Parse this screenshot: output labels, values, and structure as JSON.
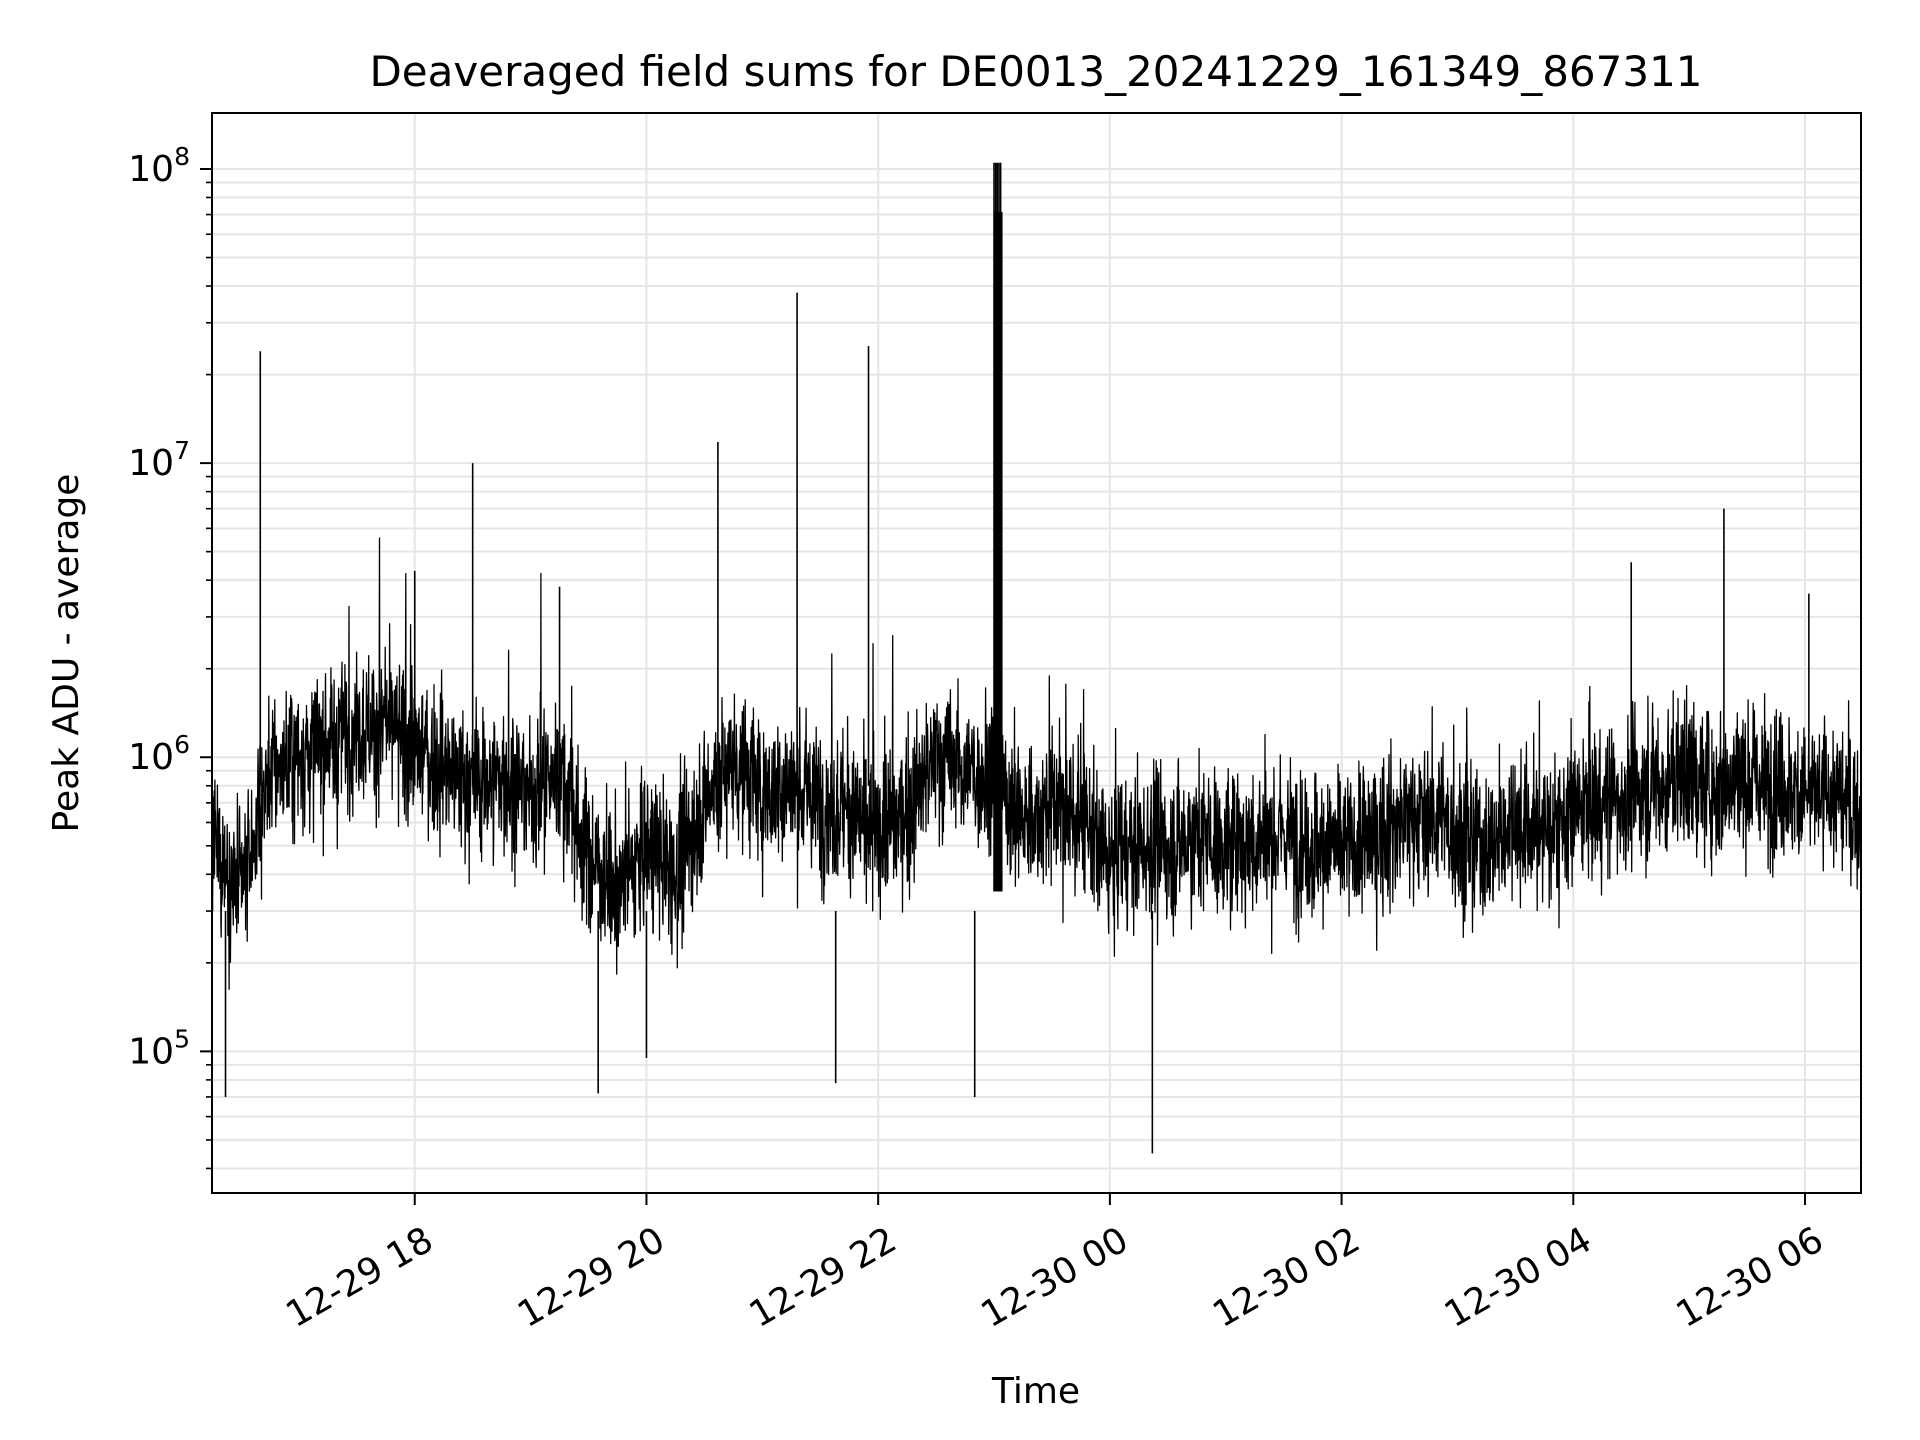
{
  "chart_data": {
    "type": "line",
    "title": "Deaveraged field sums for DE0013_20241229_161349_867311",
    "xlabel": "Time",
    "ylabel": "Peak ADU - average",
    "yscale": "log",
    "grid": true,
    "line_color": "#000000",
    "grid_color": "#e6e6e6",
    "xlim": [
      "2024-12-29 16:15",
      "2024-12-30 06:29"
    ],
    "ylim": [
      33000,
      155000000
    ],
    "x_ticks": [
      {
        "value": "2024-12-29 18:00",
        "label": "12-29 18"
      },
      {
        "value": "2024-12-29 20:00",
        "label": "12-29 20"
      },
      {
        "value": "2024-12-29 22:00",
        "label": "12-29 22"
      },
      {
        "value": "2024-12-30 00:00",
        "label": "12-30 00"
      },
      {
        "value": "2024-12-30 02:00",
        "label": "12-30 02"
      },
      {
        "value": "2024-12-30 04:00",
        "label": "12-30 04"
      },
      {
        "value": "2024-12-30 06:00",
        "label": "12-30 06"
      }
    ],
    "y_ticks": [
      {
        "value": 100000,
        "base": "10",
        "exp": "5"
      },
      {
        "value": 1000000,
        "base": "10",
        "exp": "6"
      },
      {
        "value": 10000000,
        "base": "10",
        "exp": "7"
      },
      {
        "value": 100000000,
        "base": "10",
        "exp": "8"
      }
    ],
    "series": [
      {
        "x": [
          "2024-12-29 16:15",
          "2024-12-29 16:30",
          "2024-12-29 16:45",
          "2024-12-29 17:00",
          "2024-12-29 17:15",
          "2024-12-29 17:30",
          "2024-12-29 17:45",
          "2024-12-29 18:00",
          "2024-12-29 18:15",
          "2024-12-29 18:30",
          "2024-12-29 18:45",
          "2024-12-29 19:00",
          "2024-12-29 19:15",
          "2024-12-29 19:30",
          "2024-12-29 19:45",
          "2024-12-29 20:00",
          "2024-12-29 20:15",
          "2024-12-29 20:30",
          "2024-12-29 20:45",
          "2024-12-29 21:00",
          "2024-12-29 21:15",
          "2024-12-29 21:30",
          "2024-12-29 21:45",
          "2024-12-29 22:00",
          "2024-12-29 22:15",
          "2024-12-29 22:30",
          "2024-12-29 22:45",
          "2024-12-29 23:00",
          "2024-12-29 23:15",
          "2024-12-29 23:30",
          "2024-12-29 23:45",
          "2024-12-30 00:00",
          "2024-12-30 00:15",
          "2024-12-30 00:30",
          "2024-12-30 00:45",
          "2024-12-30 01:00",
          "2024-12-30 01:15",
          "2024-12-30 01:30",
          "2024-12-30 01:45",
          "2024-12-30 02:00",
          "2024-12-30 02:15",
          "2024-12-30 02:30",
          "2024-12-30 02:45",
          "2024-12-30 03:00",
          "2024-12-30 03:15",
          "2024-12-30 03:30",
          "2024-12-30 03:45",
          "2024-12-30 04:00",
          "2024-12-30 04:15",
          "2024-12-30 04:30",
          "2024-12-30 04:45",
          "2024-12-30 05:00",
          "2024-12-30 05:15",
          "2024-12-30 05:30",
          "2024-12-30 05:45",
          "2024-12-30 06:00",
          "2024-12-30 06:15",
          "2024-12-30 06:29"
        ],
        "y": [
          500000,
          350000,
          900000,
          1000000,
          1100000,
          1300000,
          1250000,
          1100000,
          900000,
          800000,
          850000,
          750000,
          900000,
          450000,
          350000,
          500000,
          400000,
          700000,
          1000000,
          750000,
          800000,
          700000,
          650000,
          550000,
          650000,
          1000000,
          900000,
          900000,
          600000,
          700000,
          600000,
          450000,
          500000,
          480000,
          550000,
          500000,
          520000,
          550000,
          500000,
          500000,
          520000,
          600000,
          650000,
          550000,
          480000,
          600000,
          550000,
          650000,
          700000,
          750000,
          800000,
          850000,
          800000,
          850000,
          800000,
          750000,
          750000,
          650000
        ],
        "spikes": [
          {
            "x": "2024-12-29 16:22",
            "y": 70000
          },
          {
            "x": "2024-12-29 16:40",
            "y": 24000000
          },
          {
            "x": "2024-12-29 18:30",
            "y": 10000000
          },
          {
            "x": "2024-12-29 18:00",
            "y": 4300000
          },
          {
            "x": "2024-12-29 19:15",
            "y": 3800000
          },
          {
            "x": "2024-12-29 19:35",
            "y": 72000
          },
          {
            "x": "2024-12-29 20:00",
            "y": 95000
          },
          {
            "x": "2024-12-29 20:37",
            "y": 11800000
          },
          {
            "x": "2024-12-29 21:18",
            "y": 38000000
          },
          {
            "x": "2024-12-29 21:38",
            "y": 78000
          },
          {
            "x": "2024-12-29 21:55",
            "y": 25000000
          },
          {
            "x": "2024-12-29 22:50",
            "y": 70000
          },
          {
            "x": "2024-12-30 00:22",
            "y": 45000
          },
          {
            "x": "2024-12-30 04:30",
            "y": 4600000
          },
          {
            "x": "2024-12-30 05:18",
            "y": 7000000
          },
          {
            "x": "2024-12-30 06:02",
            "y": 3600000
          }
        ],
        "burst": {
          "start": "2024-12-29 23:00",
          "end": "2024-12-29 23:04",
          "y": 105000000
        }
      }
    ]
  }
}
